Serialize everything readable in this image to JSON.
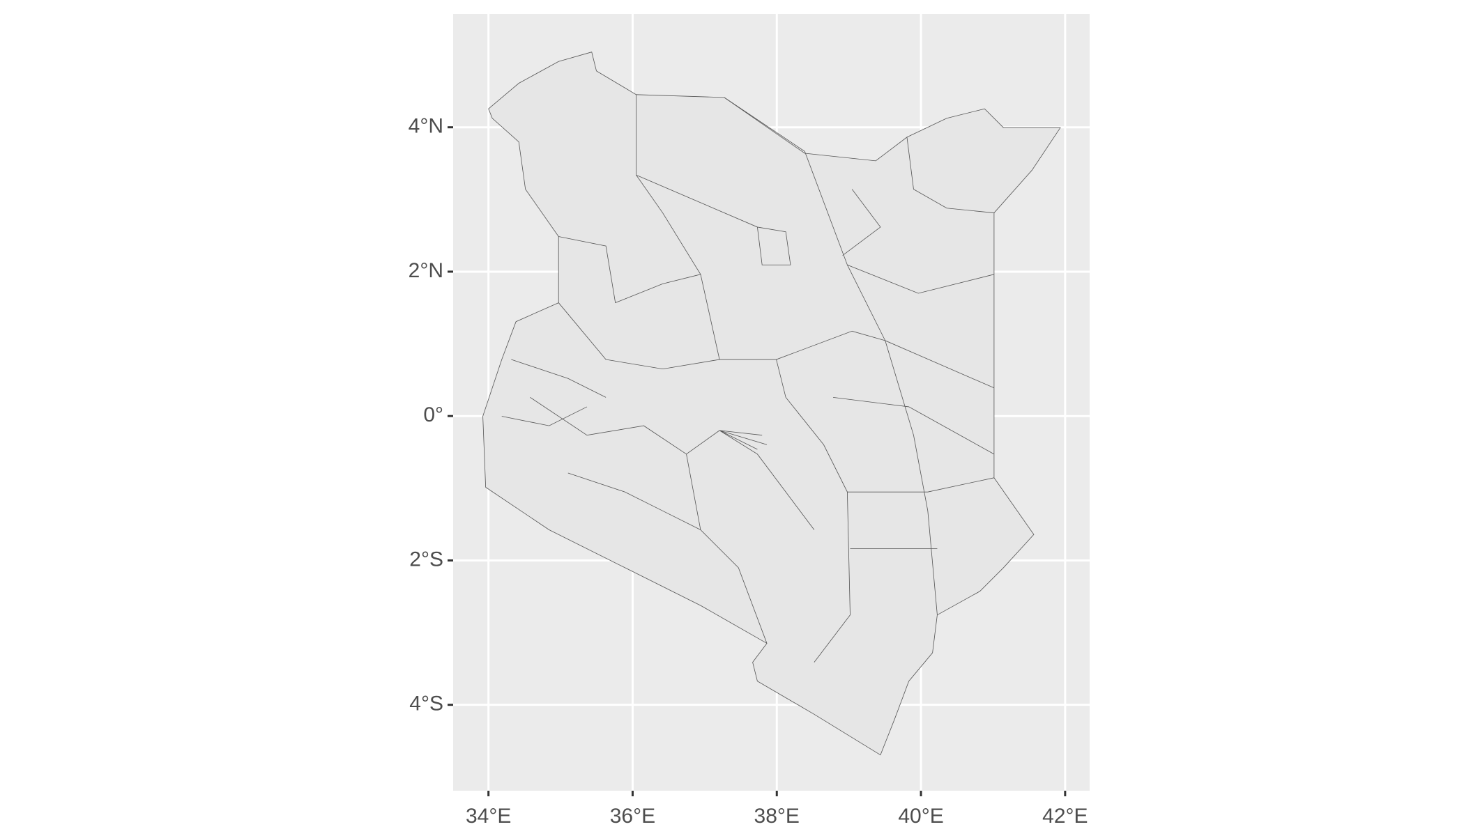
{
  "chart_data": {
    "type": "map",
    "xlim": [
      33.51,
      42.34
    ],
    "ylim": [
      -5.19,
      5.57
    ],
    "xticks": [
      {
        "value": 34,
        "label": "34°E"
      },
      {
        "value": 36,
        "label": "36°E"
      },
      {
        "value": 38,
        "label": "38°E"
      },
      {
        "value": 40,
        "label": "40°E"
      },
      {
        "value": 42,
        "label": "42°E"
      }
    ],
    "yticks": [
      {
        "value": -4,
        "label": "4°S"
      },
      {
        "value": -2,
        "label": "2°S"
      },
      {
        "value": 0,
        "label": "0°"
      },
      {
        "value": 2,
        "label": "2°N"
      },
      {
        "value": 4,
        "label": "4°N"
      }
    ],
    "grid": true
  }
}
